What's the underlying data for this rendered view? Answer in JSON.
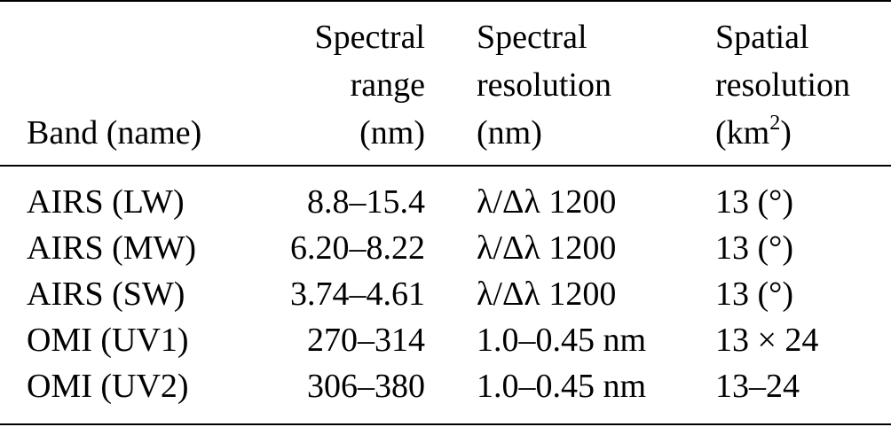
{
  "table": {
    "headers": {
      "band": [
        "Band (name)"
      ],
      "spectral_range": [
        "Spectral",
        "range",
        "(nm)"
      ],
      "spectral_resolution": [
        "Spectral",
        "resolution",
        "(nm)"
      ],
      "spatial_resolution": [
        "Spatial",
        "resolution",
        "(km",
        "2",
        ")"
      ]
    },
    "rows": [
      {
        "band": "AIRS (LW)",
        "range": "8.8–15.4",
        "spectral_res": "λ/Δλ 1200",
        "spatial_res": "13 (°)"
      },
      {
        "band": "AIRS (MW)",
        "range": "6.20–8.22",
        "spectral_res": "λ/Δλ 1200",
        "spatial_res": "13 (°)"
      },
      {
        "band": "AIRS (SW)",
        "range": "3.74–4.61",
        "spectral_res": "λ/Δλ 1200",
        "spatial_res": "13 (°)"
      },
      {
        "band": "OMI (UV1)",
        "range": "270–314",
        "spectral_res": "1.0–0.45 nm",
        "spatial_res": "13 × 24"
      },
      {
        "band": "OMI (UV2)",
        "range": "306–380",
        "spectral_res": "1.0–0.45 nm",
        "spatial_res": "13–24"
      }
    ]
  }
}
